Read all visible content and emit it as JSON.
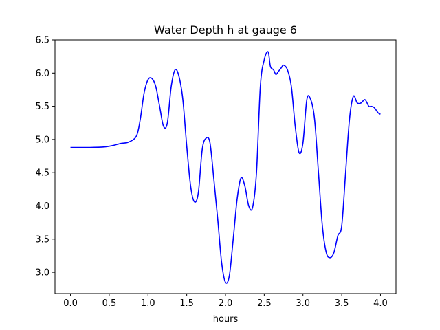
{
  "chart_data": {
    "type": "line",
    "title": "Water Depth h at gauge 6",
    "xlabel": "hours",
    "ylabel": "",
    "xlim": [
      -0.2,
      4.2
    ],
    "ylim": [
      2.68,
      6.5
    ],
    "xticks": [
      0.0,
      0.5,
      1.0,
      1.5,
      2.0,
      2.5,
      3.0,
      3.5,
      4.0
    ],
    "xtick_labels": [
      "0.0",
      "0.5",
      "1.0",
      "1.5",
      "2.0",
      "2.5",
      "3.0",
      "3.5",
      "4.0"
    ],
    "yticks": [
      3.0,
      3.5,
      4.0,
      4.5,
      5.0,
      5.5,
      6.0,
      6.5
    ],
    "ytick_labels": [
      "3.0",
      "3.5",
      "4.0",
      "4.5",
      "5.0",
      "5.5",
      "6.0",
      "6.5"
    ],
    "grid": false,
    "series": [
      {
        "color": "#0000ff",
        "x": [
          0.0,
          0.25,
          0.45,
          0.55,
          0.65,
          0.75,
          0.85,
          0.9,
          0.95,
          1.0,
          1.05,
          1.1,
          1.15,
          1.2,
          1.25,
          1.3,
          1.35,
          1.4,
          1.45,
          1.5,
          1.55,
          1.6,
          1.65,
          1.7,
          1.75,
          1.8,
          1.85,
          1.9,
          1.95,
          2.0,
          2.05,
          2.1,
          2.15,
          2.2,
          2.25,
          2.3,
          2.35,
          2.4,
          2.45,
          2.5,
          2.55,
          2.58,
          2.62,
          2.65,
          2.68,
          2.72,
          2.75,
          2.8,
          2.85,
          2.9,
          2.95,
          3.0,
          3.05,
          3.1,
          3.15,
          3.2,
          3.25,
          3.3,
          3.35,
          3.4,
          3.45,
          3.5,
          3.55,
          3.6,
          3.65,
          3.7,
          3.75,
          3.8,
          3.85,
          3.88,
          3.92,
          3.97,
          4.0
        ],
        "y": [
          4.88,
          4.88,
          4.89,
          4.91,
          4.94,
          4.96,
          5.05,
          5.3,
          5.7,
          5.9,
          5.92,
          5.8,
          5.5,
          5.2,
          5.25,
          5.8,
          6.05,
          5.95,
          5.6,
          4.9,
          4.3,
          4.06,
          4.2,
          4.85,
          5.02,
          4.95,
          4.4,
          3.8,
          3.15,
          2.85,
          2.95,
          3.5,
          4.1,
          4.42,
          4.3,
          4.0,
          3.98,
          4.5,
          5.8,
          6.2,
          6.32,
          6.1,
          6.05,
          5.98,
          6.02,
          6.08,
          6.12,
          6.05,
          5.8,
          5.2,
          4.8,
          4.95,
          5.6,
          5.6,
          5.3,
          4.5,
          3.7,
          3.3,
          3.22,
          3.3,
          3.55,
          3.7,
          4.5,
          5.3,
          5.65,
          5.55,
          5.55,
          5.6,
          5.5,
          5.5,
          5.48,
          5.4,
          5.38
        ]
      }
    ]
  }
}
